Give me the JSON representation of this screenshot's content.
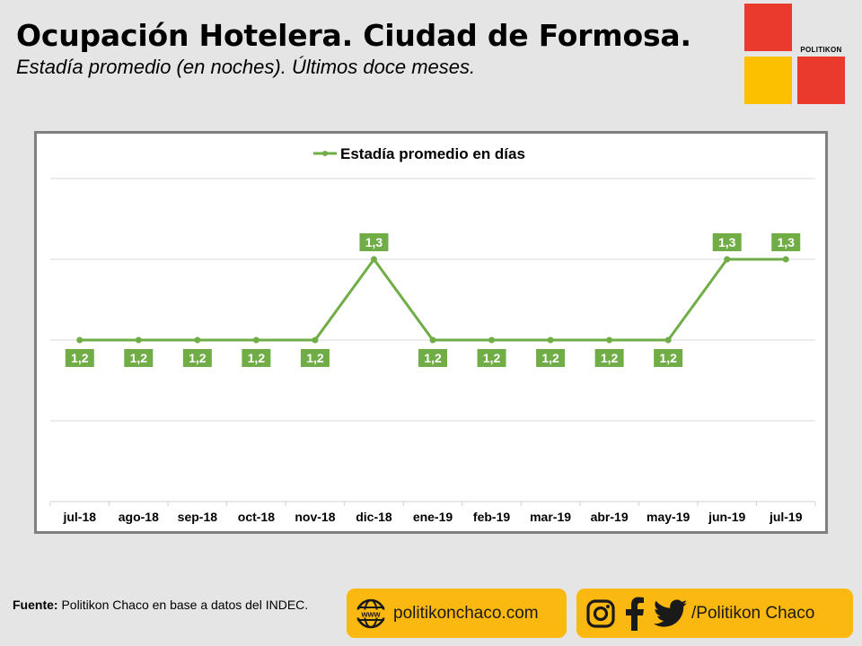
{
  "header": {
    "title": "Ocupación Hotelera. Ciudad de Formosa.",
    "subtitle": "Estadía promedio (en noches). Últimos doce meses."
  },
  "logo": {
    "name": "POLITIKON"
  },
  "chart_data": {
    "type": "line",
    "title": "",
    "categories": [
      "jul-18",
      "ago-18",
      "sep-18",
      "oct-18",
      "nov-18",
      "dic-18",
      "ene-19",
      "feb-19",
      "mar-19",
      "abr-19",
      "may-19",
      "jun-19",
      "jul-19"
    ],
    "series": [
      {
        "name": "Estadía promedio en días",
        "values": [
          1.2,
          1.2,
          1.2,
          1.2,
          1.2,
          1.3,
          1.2,
          1.2,
          1.2,
          1.2,
          1.2,
          1.3,
          1.3
        ],
        "labels": [
          "1,2",
          "1,2",
          "1,2",
          "1,2",
          "1,2",
          "1,3",
          "1,2",
          "1,2",
          "1,2",
          "1,2",
          "1,2",
          "1,3",
          "1,3"
        ]
      }
    ],
    "ylim": [
      1.0,
      1.4
    ],
    "grid": true,
    "legend": "top-center",
    "colors": {
      "series": "#70ad47",
      "grid": "#d9d9d9"
    }
  },
  "footer": {
    "source_label": "Fuente:",
    "source_text": " Politikon Chaco en base a datos del INDEC.",
    "website": "politikonchaco.com",
    "social": "/Politikon Chaco",
    "icons": [
      "www-globe-icon",
      "instagram-icon",
      "facebook-icon",
      "twitter-icon"
    ]
  }
}
